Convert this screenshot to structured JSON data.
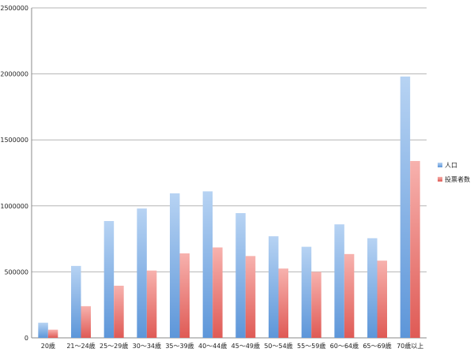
{
  "chart_data": {
    "type": "bar",
    "categories": [
      "20歳",
      "21〜24歳",
      "25〜29歳",
      "30〜34歳",
      "35〜39歳",
      "40〜44歳",
      "45〜49歳",
      "50〜54歳",
      "55〜59歳",
      "60〜64歳",
      "65〜69歳",
      "70歳以上"
    ],
    "series": [
      {
        "name": "人口",
        "color": "#6ea3df",
        "values": [
          115000,
          545000,
          885000,
          980000,
          1095000,
          1110000,
          945000,
          770000,
          690000,
          860000,
          755000,
          1980000
        ]
      },
      {
        "name": "投票者数",
        "color": "#e8716c",
        "values": [
          62000,
          240000,
          395000,
          510000,
          640000,
          685000,
          620000,
          525000,
          500000,
          635000,
          585000,
          1340000
        ]
      }
    ],
    "ylim": [
      0,
      2500000
    ],
    "yticks": [
      0,
      500000,
      1000000,
      1500000,
      2000000,
      2500000
    ],
    "ytick_labels": [
      "0",
      "500000",
      "1000000",
      "1500000",
      "2000000",
      "2500000"
    ],
    "grid": true,
    "legend_position": "right",
    "title": "",
    "xlabel": "",
    "ylabel": ""
  }
}
